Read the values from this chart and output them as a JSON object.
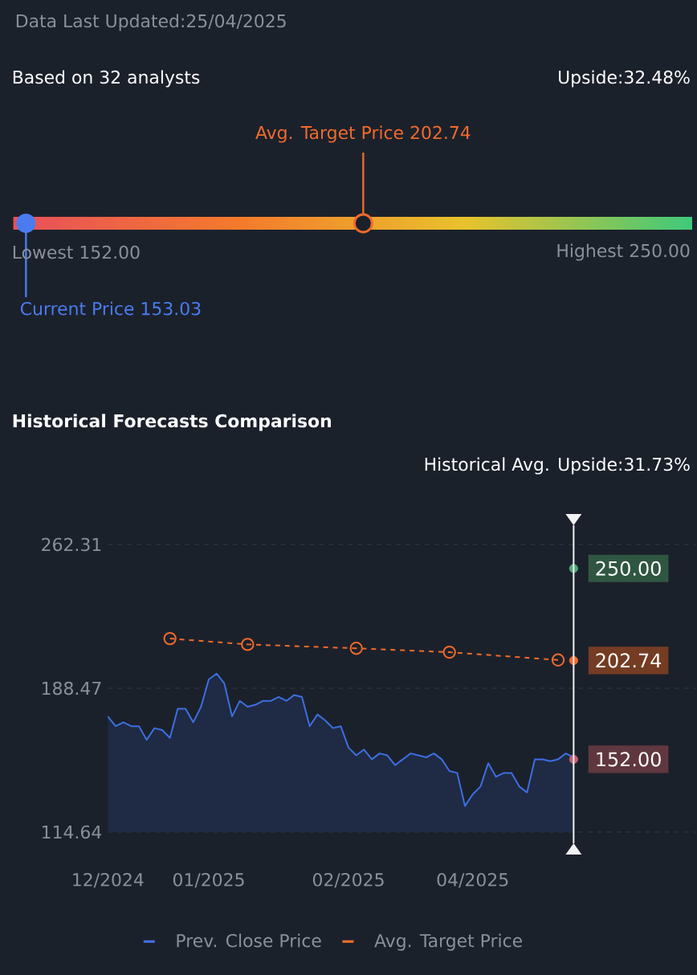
{
  "chart_data": [
    {
      "type": "other",
      "annotations": [
        "Data Last Updated:25/04/2025",
        "Based on 32 analysts",
        "Upside:32.48%",
        "Avg. Target Price 202.74",
        "Lowest 152.00",
        "Highest 250.00",
        "Current Price 153.03"
      ]
    },
    {
      "type": "line",
      "title": "Historical Forecasts Comparison",
      "subtitle": "Historical Avg. Upside:31.73%",
      "categories": [
        "12/2024",
        null,
        null,
        null,
        null,
        null,
        null,
        null,
        null,
        null,
        null,
        null,
        null,
        "01/2025",
        null,
        null,
        null,
        null,
        null,
        null,
        null,
        null,
        null,
        null,
        null,
        null,
        null,
        null,
        null,
        null,
        null,
        "02/2025",
        null,
        null,
        null,
        null,
        null,
        null,
        null,
        null,
        null,
        null,
        null,
        null,
        null,
        null,
        null,
        "04/2025",
        null,
        null,
        null,
        null,
        null,
        null,
        null,
        null,
        null,
        null,
        null,
        null,
        null
      ],
      "ylim": [
        114.64,
        262.31
      ],
      "yticks": [
        114.64,
        188.47,
        262.31
      ],
      "grid": "y",
      "legend": "bottom",
      "series": [
        {
          "name": "Prev. Close Price",
          "type": "area",
          "color": "#3d6fe0",
          "marker": "none",
          "line_style": "solid",
          "values": [
            174,
            169,
            171,
            169,
            169,
            162,
            168,
            167,
            163,
            178,
            178,
            171,
            179,
            193,
            196,
            191,
            174,
            182,
            179,
            180,
            182,
            182,
            184,
            182,
            185,
            184,
            169,
            175,
            172,
            168,
            169,
            158,
            154,
            157,
            152,
            155,
            154,
            149,
            152,
            155,
            154,
            153,
            155,
            152,
            146,
            145,
            128,
            134,
            138,
            150,
            143,
            145,
            145,
            138,
            135,
            152,
            152,
            151,
            152,
            155,
            153
          ]
        },
        {
          "name": "Avg. Target Price",
          "type": "line",
          "color": "#f06a2c",
          "marker": "circle",
          "line_style": "dashed",
          "values": [
            null,
            null,
            null,
            null,
            null,
            null,
            null,
            null,
            214,
            null,
            null,
            null,
            null,
            null,
            null,
            null,
            null,
            null,
            211,
            null,
            null,
            null,
            null,
            null,
            null,
            null,
            null,
            null,
            null,
            null,
            null,
            null,
            209,
            null,
            null,
            null,
            null,
            null,
            null,
            null,
            null,
            null,
            null,
            null,
            207,
            null,
            null,
            null,
            null,
            null,
            null,
            null,
            null,
            null,
            null,
            null,
            null,
            null,
            203,
            null,
            null
          ]
        },
        {
          "type": "scatter",
          "color": "#4fa878",
          "marker": "circle",
          "values": [
            null,
            null,
            null,
            null,
            null,
            null,
            null,
            null,
            null,
            null,
            null,
            null,
            null,
            null,
            null,
            null,
            null,
            null,
            null,
            null,
            null,
            null,
            null,
            null,
            null,
            null,
            null,
            null,
            null,
            null,
            null,
            null,
            null,
            null,
            null,
            null,
            null,
            null,
            null,
            null,
            null,
            null,
            null,
            null,
            null,
            null,
            null,
            null,
            null,
            null,
            null,
            null,
            null,
            null,
            null,
            null,
            null,
            null,
            null,
            null,
            250
          ],
          "value_labels": [
            null,
            null,
            null,
            null,
            null,
            null,
            null,
            null,
            null,
            null,
            null,
            null,
            null,
            null,
            null,
            null,
            null,
            null,
            null,
            null,
            null,
            null,
            null,
            null,
            null,
            null,
            null,
            null,
            null,
            null,
            null,
            null,
            null,
            null,
            null,
            null,
            null,
            null,
            null,
            null,
            null,
            null,
            null,
            null,
            null,
            null,
            null,
            null,
            null,
            null,
            null,
            null,
            null,
            null,
            null,
            null,
            null,
            null,
            null,
            null,
            "250.00"
          ]
        },
        {
          "type": "scatter",
          "color": "#f06a2c",
          "marker": "circle",
          "values": [
            null,
            null,
            null,
            null,
            null,
            null,
            null,
            null,
            null,
            null,
            null,
            null,
            null,
            null,
            null,
            null,
            null,
            null,
            null,
            null,
            null,
            null,
            null,
            null,
            null,
            null,
            null,
            null,
            null,
            null,
            null,
            null,
            null,
            null,
            null,
            null,
            null,
            null,
            null,
            null,
            null,
            null,
            null,
            null,
            null,
            null,
            null,
            null,
            null,
            null,
            null,
            null,
            null,
            null,
            null,
            null,
            null,
            null,
            null,
            null,
            202.74
          ],
          "value_labels": [
            null,
            null,
            null,
            null,
            null,
            null,
            null,
            null,
            null,
            null,
            null,
            null,
            null,
            null,
            null,
            null,
            null,
            null,
            null,
            null,
            null,
            null,
            null,
            null,
            null,
            null,
            null,
            null,
            null,
            null,
            null,
            null,
            null,
            null,
            null,
            null,
            null,
            null,
            null,
            null,
            null,
            null,
            null,
            null,
            null,
            null,
            null,
            null,
            null,
            null,
            null,
            null,
            null,
            null,
            null,
            null,
            null,
            null,
            null,
            null,
            "202.74"
          ]
        },
        {
          "type": "scatter",
          "color": "#c06070",
          "marker": "circle",
          "values": [
            null,
            null,
            null,
            null,
            null,
            null,
            null,
            null,
            null,
            null,
            null,
            null,
            null,
            null,
            null,
            null,
            null,
            null,
            null,
            null,
            null,
            null,
            null,
            null,
            null,
            null,
            null,
            null,
            null,
            null,
            null,
            null,
            null,
            null,
            null,
            null,
            null,
            null,
            null,
            null,
            null,
            null,
            null,
            null,
            null,
            null,
            null,
            null,
            null,
            null,
            null,
            null,
            null,
            null,
            null,
            null,
            null,
            null,
            null,
            null,
            152
          ],
          "value_labels": [
            null,
            null,
            null,
            null,
            null,
            null,
            null,
            null,
            null,
            null,
            null,
            null,
            null,
            null,
            null,
            null,
            null,
            null,
            null,
            null,
            null,
            null,
            null,
            null,
            null,
            null,
            null,
            null,
            null,
            null,
            null,
            null,
            null,
            null,
            null,
            null,
            null,
            null,
            null,
            null,
            null,
            null,
            null,
            null,
            null,
            null,
            null,
            null,
            null,
            null,
            null,
            null,
            null,
            null,
            null,
            null,
            null,
            null,
            null,
            null,
            "152.00"
          ]
        }
      ]
    }
  ]
}
